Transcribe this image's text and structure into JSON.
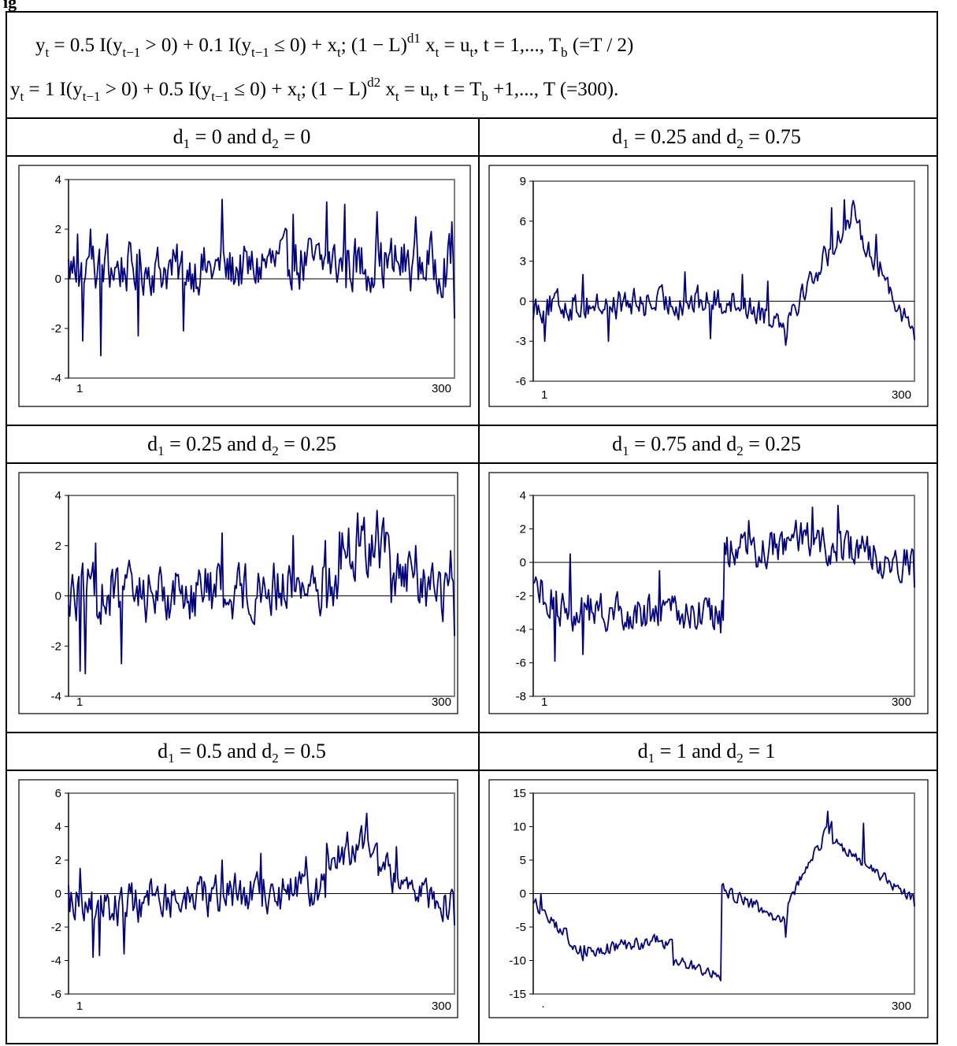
{
  "header_fragment": "ig",
  "equations": {
    "line1": {
      "a": "y",
      "a_sub": "t",
      "b": " = 0.5 I(y",
      "b_sub": "t−1",
      "c": " > 0) + 0.1 I(y",
      "c_sub": "t−1",
      "d": " ≤ 0) + x",
      "d_sub": "t",
      "e": ";   (1 − L)",
      "e_sup": "d1",
      "f": " x",
      "f_sub": "t",
      "g": " = u",
      "g_sub": "t",
      "h": ",     t = 1,..., T",
      "h_sub": "b",
      "i": " (=T / 2)"
    },
    "line2": {
      "a": "y",
      "a_sub": "t",
      "b": " = 1 I(y",
      "b_sub": "t−1",
      "c": " > 0) + 0.5 I(y",
      "c_sub": "t−1",
      "d": " ≤ 0) + x",
      "d_sub": "t",
      "e": ";   (1 − L)",
      "e_sup": "d2",
      "f": " x",
      "f_sub": "t",
      "g": " = u",
      "g_sub": "t",
      "h": ",     t = T",
      "h_sub": "b",
      "i": " +1,..., T (=300)."
    }
  },
  "captions": [
    {
      "d1": "0",
      "d2": "0"
    },
    {
      "d1": "0.25",
      "d2": "0.75"
    },
    {
      "d1": "0.25",
      "d2": "0.25"
    },
    {
      "d1": "0.75",
      "d2": "0.25"
    },
    {
      "d1": "0.5",
      "d2": "0.5"
    },
    {
      "d1": "1",
      "d2": "1"
    }
  ],
  "caption_text": {
    "d": "d",
    "sub1": "1",
    "sub2": "2",
    "eq": " = ",
    "and": "  and  "
  },
  "chart_data": [
    {
      "type": "line",
      "title": "",
      "xlabel": "",
      "ylabel": "",
      "x_tick_labels": [
        "1",
        "300"
      ],
      "ylim": [
        -4,
        4
      ],
      "yticks": [
        -4,
        -2,
        0,
        2,
        4
      ],
      "n": 300,
      "grid": false,
      "legend": "none",
      "line_color": "#000080",
      "segments": [
        {
          "x": [
            1,
            150
          ],
          "y": [
            0.4,
            0.4
          ],
          "amp": 0.9,
          "spikes": [
            [
              8,
              1.8
            ],
            [
              12,
              -2.5
            ],
            [
              18,
              2.0
            ],
            [
              26,
              -3.1
            ],
            [
              31,
              1.8
            ],
            [
              55,
              -2.3
            ],
            [
              90,
              -2.1
            ],
            [
              120,
              3.2
            ]
          ]
        },
        {
          "x": [
            151,
            300
          ],
          "y": [
            0.6,
            0.6
          ],
          "amp": 1.0,
          "spikes": [
            [
              175,
              2.6
            ],
            [
              201,
              3.1
            ],
            [
              215,
              3.0
            ],
            [
              240,
              2.7
            ],
            [
              270,
              2.5
            ],
            [
              298,
              2.3
            ],
            [
              300,
              -1.6
            ]
          ]
        }
      ]
    },
    {
      "type": "line",
      "title": "",
      "xlabel": "",
      "ylabel": "",
      "x_tick_labels": [
        "1",
        "300"
      ],
      "ylim": [
        -6,
        9
      ],
      "yticks": [
        -6,
        -3,
        0,
        3,
        6,
        9
      ],
      "n": 300,
      "grid": false,
      "legend": "none",
      "line_color": "#000080",
      "segments": [
        {
          "x": [
            1,
            150
          ],
          "y": [
            -0.4,
            0.0
          ],
          "amp": 1.0,
          "spikes": [
            [
              10,
              -3.0
            ],
            [
              40,
              2.0
            ],
            [
              60,
              -3.0
            ],
            [
              120,
              2.2
            ],
            [
              140,
              -2.8
            ]
          ]
        },
        {
          "x": [
            151,
            200
          ],
          "y": [
            0.2,
            -1.5
          ],
          "amp": 0.9,
          "spikes": [
            [
              165,
              2.0
            ],
            [
              185,
              1.5
            ],
            [
              199,
              -3.3
            ]
          ]
        },
        {
          "x": [
            201,
            252
          ],
          "y": [
            -1.0,
            6.5
          ],
          "amp": 0.9,
          "spikes": [
            [
              235,
              7.0
            ],
            [
              245,
              7.6
            ]
          ]
        },
        {
          "x": [
            253,
            300
          ],
          "y": [
            6.0,
            -2.5
          ],
          "amp": 0.8,
          "spikes": [
            [
              270,
              5.0
            ],
            [
              300,
              -2.9
            ]
          ]
        }
      ]
    },
    {
      "type": "line",
      "title": "",
      "xlabel": "",
      "ylabel": "",
      "x_tick_labels": [
        "1",
        "300"
      ],
      "ylim": [
        -4,
        4
      ],
      "yticks": [
        -4,
        -2,
        0,
        2,
        4
      ],
      "n": 300,
      "grid": false,
      "legend": "none",
      "line_color": "#000080",
      "segments": [
        {
          "x": [
            1,
            150
          ],
          "y": [
            0.0,
            0.3
          ],
          "amp": 1.0,
          "spikes": [
            [
              10,
              -3.0
            ],
            [
              14,
              -3.1
            ],
            [
              22,
              2.1
            ],
            [
              42,
              -2.7
            ],
            [
              120,
              2.5
            ]
          ]
        },
        {
          "x": [
            151,
            210
          ],
          "y": [
            0.3,
            0.5
          ],
          "amp": 1.0,
          "spikes": [
            [
              175,
              2.4
            ],
            [
              200,
              2.2
            ]
          ]
        },
        {
          "x": [
            211,
            250
          ],
          "y": [
            1.8,
            2.0
          ],
          "amp": 1.0,
          "spikes": [
            [
              225,
              3.3
            ],
            [
              240,
              3.4
            ]
          ]
        },
        {
          "x": [
            251,
            300
          ],
          "y": [
            0.8,
            0.0
          ],
          "amp": 1.0,
          "spikes": [
            [
              270,
              2.0
            ],
            [
              297,
              1.8
            ],
            [
              300,
              -1.6
            ]
          ]
        }
      ]
    },
    {
      "type": "line",
      "title": "",
      "xlabel": "",
      "ylabel": "",
      "x_tick_labels": [
        "1",
        "300"
      ],
      "ylim": [
        -8,
        4
      ],
      "yticks": [
        -8,
        -6,
        -4,
        -2,
        0,
        2,
        4
      ],
      "n": 300,
      "grid": false,
      "legend": "none",
      "line_color": "#000080",
      "segments": [
        {
          "x": [
            1,
            30
          ],
          "y": [
            -1.5,
            -3.0
          ],
          "amp": 1.0,
          "spikes": [
            [
              18,
              -5.9
            ],
            [
              30,
              0.5
            ]
          ]
        },
        {
          "x": [
            31,
            150
          ],
          "y": [
            -3.0,
            -3.0
          ],
          "amp": 1.0,
          "spikes": [
            [
              40,
              -5.5
            ],
            [
              100,
              -0.5
            ],
            [
              148,
              -4.2
            ]
          ]
        },
        {
          "x": [
            151,
            200
          ],
          "y": [
            0.5,
            1.0
          ],
          "amp": 1.0,
          "spikes": [
            [
              153,
              1.5
            ],
            [
              170,
              2.5
            ]
          ]
        },
        {
          "x": [
            201,
            300
          ],
          "y": [
            1.5,
            0.0
          ],
          "amp": 1.0,
          "spikes": [
            [
              220,
              3.3
            ],
            [
              240,
              3.4
            ],
            [
              300,
              -1.5
            ]
          ]
        }
      ]
    },
    {
      "type": "line",
      "title": "",
      "xlabel": "",
      "ylabel": "",
      "x_tick_labels": [
        "1",
        "300"
      ],
      "ylim": [
        -6,
        6
      ],
      "yticks": [
        -6,
        -4,
        -2,
        0,
        2,
        4,
        6
      ],
      "n": 300,
      "grid": false,
      "legend": "none",
      "line_color": "#000080",
      "segments": [
        {
          "x": [
            1,
            60
          ],
          "y": [
            -0.5,
            -0.8
          ],
          "amp": 1.2,
          "spikes": [
            [
              20,
              -3.8
            ],
            [
              25,
              -3.7
            ],
            [
              44,
              -3.6
            ],
            [
              10,
              1.5
            ]
          ]
        },
        {
          "x": [
            61,
            200
          ],
          "y": [
            -0.3,
            0.2
          ],
          "amp": 1.1,
          "spikes": [
            [
              120,
              2.0
            ],
            [
              150,
              2.4
            ],
            [
              185,
              2.2
            ]
          ]
        },
        {
          "x": [
            201,
            240
          ],
          "y": [
            2.5,
            3.0
          ],
          "amp": 1.0,
          "spikes": [
            [
              232,
              4.8
            ]
          ]
        },
        {
          "x": [
            241,
            300
          ],
          "y": [
            1.5,
            -0.8
          ],
          "amp": 0.9,
          "spikes": [
            [
              255,
              2.8
            ],
            [
              300,
              -1.9
            ]
          ]
        }
      ]
    },
    {
      "type": "line",
      "title": "",
      "xlabel": "",
      "ylabel": "",
      "x_tick_labels": [
        "·",
        "300"
      ],
      "ylim": [
        -15,
        15
      ],
      "yticks": [
        -15,
        -10,
        -5,
        0,
        5,
        10,
        15
      ],
      "n": 300,
      "grid": false,
      "legend": "none",
      "line_color": "#000080",
      "segments": [
        {
          "x": [
            1,
            40
          ],
          "y": [
            -1.0,
            -9.0
          ],
          "amp": 0.9,
          "spikes": [
            [
              7,
              0.0
            ],
            [
              40,
              -10.0
            ]
          ]
        },
        {
          "x": [
            41,
            110
          ],
          "y": [
            -8.5,
            -7.0
          ],
          "amp": 0.9,
          "spikes": []
        },
        {
          "x": [
            111,
            148
          ],
          "y": [
            -10.0,
            -12.0
          ],
          "amp": 0.8,
          "spikes": [
            [
              148,
              -13.0
            ]
          ]
        },
        {
          "x": [
            149,
            200
          ],
          "y": [
            0.5,
            -4.0
          ],
          "amp": 0.9,
          "spikes": [
            [
              150,
              1.5
            ],
            [
              199,
              -6.5
            ]
          ]
        },
        {
          "x": [
            201,
            235
          ],
          "y": [
            -1.0,
            10.5
          ],
          "amp": 0.8,
          "spikes": [
            [
              232,
              12.3
            ]
          ]
        },
        {
          "x": [
            236,
            300
          ],
          "y": [
            8.0,
            -1.0
          ],
          "amp": 0.7,
          "spikes": [
            [
              260,
              10.5
            ],
            [
              300,
              -1.9
            ]
          ]
        }
      ]
    }
  ]
}
